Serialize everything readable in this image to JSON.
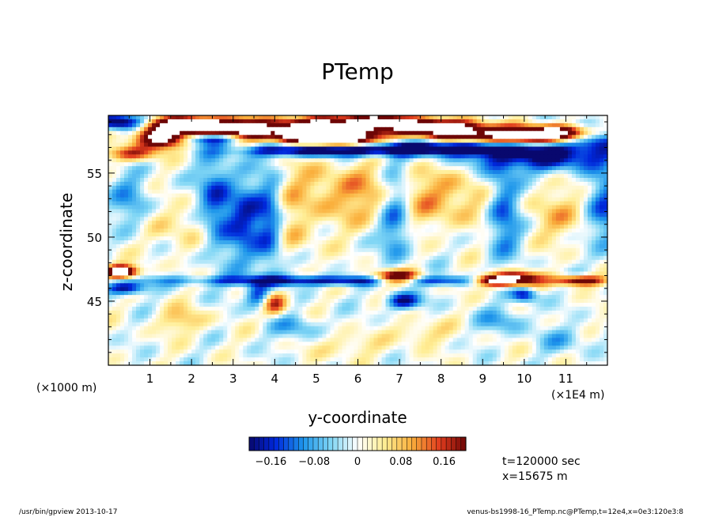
{
  "chart_data": {
    "type": "heatmap",
    "title": "PTemp",
    "xlabel": "y-coordinate",
    "ylabel": "z-coordinate",
    "x_unit": "(×1E4 m)",
    "y_unit": "(×1000 m)",
    "xlim": [
      0,
      12
    ],
    "ylim": [
      40,
      59.5
    ],
    "x_ticks": [
      "1",
      "2",
      "3",
      "4",
      "5",
      "6",
      "7",
      "8",
      "9",
      "10",
      "11"
    ],
    "y_ticks": [
      "45",
      "50",
      "55"
    ],
    "colorbar": {
      "range": [
        -0.2,
        0.2
      ],
      "labels": [
        "−0.16",
        "−0.08",
        "0",
        "0.08",
        "0.16"
      ],
      "low_color": "#08086e",
      "mid_color": "#ffffff",
      "high_color": "#6e0606"
    },
    "features": [
      {
        "y": 1.3,
        "z": 57.8,
        "dy": 0.6,
        "dz": 0.8,
        "v": 0.35
      },
      {
        "y": 1.9,
        "z": 58.8,
        "dy": 0.9,
        "dz": 0.6,
        "v": 0.3
      },
      {
        "y": 3.0,
        "z": 58.3,
        "dy": 1.0,
        "dz": 0.9,
        "v": 0.35
      },
      {
        "y": 4.7,
        "z": 58.2,
        "dy": 1.0,
        "dz": 0.9,
        "v": 0.3
      },
      {
        "y": 5.6,
        "z": 57.8,
        "dy": 1.0,
        "dz": 0.7,
        "v": 0.35
      },
      {
        "y": 6.3,
        "z": 59.0,
        "dy": 1.4,
        "dz": 0.6,
        "v": 0.3
      },
      {
        "y": 8.0,
        "z": 58.5,
        "dy": 1.2,
        "dz": 0.6,
        "v": 0.3
      },
      {
        "y": 9.6,
        "z": 57.8,
        "dy": 1.6,
        "dz": 0.7,
        "v": 0.35
      },
      {
        "y": 11.0,
        "z": 58.2,
        "dy": 0.9,
        "dz": 0.6,
        "v": 0.3
      },
      {
        "y": 2.6,
        "z": 57.7,
        "dy": 0.8,
        "dz": 0.5,
        "v": -0.3
      },
      {
        "y": 5.3,
        "z": 56.8,
        "dy": 2.0,
        "dz": 0.5,
        "v": -0.3
      },
      {
        "y": 8.3,
        "z": 57.0,
        "dy": 1.5,
        "dz": 0.6,
        "v": -0.25
      },
      {
        "y": 10.5,
        "z": 56.5,
        "dy": 1.8,
        "dz": 1.3,
        "v": -0.22
      },
      {
        "y": 11.6,
        "z": 58.0,
        "dy": 0.6,
        "dz": 1.0,
        "v": -0.2
      },
      {
        "y": 0.2,
        "z": 59.0,
        "dy": 0.6,
        "dz": 0.6,
        "v": -0.25
      },
      {
        "y": 0.5,
        "z": 56.5,
        "dy": 0.6,
        "dz": 0.6,
        "v": 0.18
      },
      {
        "y": 5.5,
        "z": 53.5,
        "dy": 2.0,
        "dz": 2.5,
        "v": 0.09
      },
      {
        "y": 8.5,
        "z": 53.0,
        "dy": 1.8,
        "dz": 2.3,
        "v": 0.08
      },
      {
        "y": 1.7,
        "z": 51.0,
        "dy": 1.2,
        "dz": 2.0,
        "v": 0.06
      },
      {
        "y": 11.0,
        "z": 51.5,
        "dy": 0.9,
        "dz": 2.0,
        "v": 0.06
      },
      {
        "y": 0.6,
        "z": 52.5,
        "dy": 0.5,
        "dz": 2.5,
        "v": -0.1
      },
      {
        "y": 2.6,
        "z": 52.5,
        "dy": 0.45,
        "dz": 3.5,
        "v": -0.18
      },
      {
        "y": 3.3,
        "z": 51.5,
        "dy": 0.4,
        "dz": 3.5,
        "v": -0.15
      },
      {
        "y": 3.9,
        "z": 51.0,
        "dy": 0.35,
        "dz": 4.0,
        "v": -0.18
      },
      {
        "y": 6.9,
        "z": 52.0,
        "dy": 0.4,
        "dz": 4.0,
        "v": -0.14
      },
      {
        "y": 9.5,
        "z": 52.5,
        "dy": 0.45,
        "dz": 3.5,
        "v": -0.18
      },
      {
        "y": 12.0,
        "z": 52.0,
        "dy": 0.5,
        "dz": 3.0,
        "v": -0.14
      },
      {
        "y": 4.3,
        "z": 50.0,
        "dy": 0.6,
        "dz": 2.0,
        "v": 0.07
      },
      {
        "y": 6.0,
        "z": 46.6,
        "dy": 4.5,
        "dz": 0.4,
        "v": -0.2
      },
      {
        "y": 0.3,
        "z": 47.3,
        "dy": 0.4,
        "dz": 0.5,
        "v": 0.35
      },
      {
        "y": 0.4,
        "z": 46.0,
        "dy": 0.5,
        "dz": 0.5,
        "v": -0.2
      },
      {
        "y": 6.9,
        "z": 46.8,
        "dy": 0.6,
        "dz": 0.55,
        "v": 0.35
      },
      {
        "y": 9.2,
        "z": 46.6,
        "dy": 0.5,
        "dz": 0.4,
        "v": 0.3
      },
      {
        "y": 9.8,
        "z": 46.7,
        "dy": 0.6,
        "dz": 0.55,
        "v": 0.35
      },
      {
        "y": 11.3,
        "z": 46.6,
        "dy": 0.7,
        "dz": 0.4,
        "v": 0.3
      },
      {
        "y": 4.0,
        "z": 44.8,
        "dy": 0.3,
        "dz": 1.0,
        "v": 0.18
      },
      {
        "y": 3.6,
        "z": 45.5,
        "dy": 0.3,
        "dz": 1.0,
        "v": -0.15
      },
      {
        "y": 7.1,
        "z": 45.0,
        "dy": 0.4,
        "dz": 0.6,
        "v": -0.2
      },
      {
        "y": 10.0,
        "z": 45.5,
        "dy": 0.3,
        "dz": 0.6,
        "v": -0.18
      },
      {
        "y": 1.8,
        "z": 43.5,
        "dy": 0.6,
        "dz": 1.0,
        "v": 0.08
      },
      {
        "y": 4.5,
        "z": 43.0,
        "dy": 0.6,
        "dz": 1.0,
        "v": -0.08
      },
      {
        "y": 7.5,
        "z": 42.5,
        "dy": 0.6,
        "dz": 1.0,
        "v": 0.07
      },
      {
        "y": 9.5,
        "z": 43.5,
        "dy": 0.6,
        "dz": 1.0,
        "v": -0.08
      },
      {
        "y": 5.7,
        "z": 41.5,
        "dy": 0.7,
        "dz": 1.0,
        "v": 0.06
      },
      {
        "y": 11.0,
        "z": 42.0,
        "dy": 0.7,
        "dz": 1.0,
        "v": -0.06
      }
    ]
  },
  "info": {
    "time": "t=120000 sec",
    "xpos": "x=15675 m"
  },
  "footer": {
    "left": "/usr/bin/gpview  2013-10-17",
    "right": "venus-bs1998-16_PTemp.nc@PTemp,t=12e4,x=0e3:120e3:8"
  }
}
